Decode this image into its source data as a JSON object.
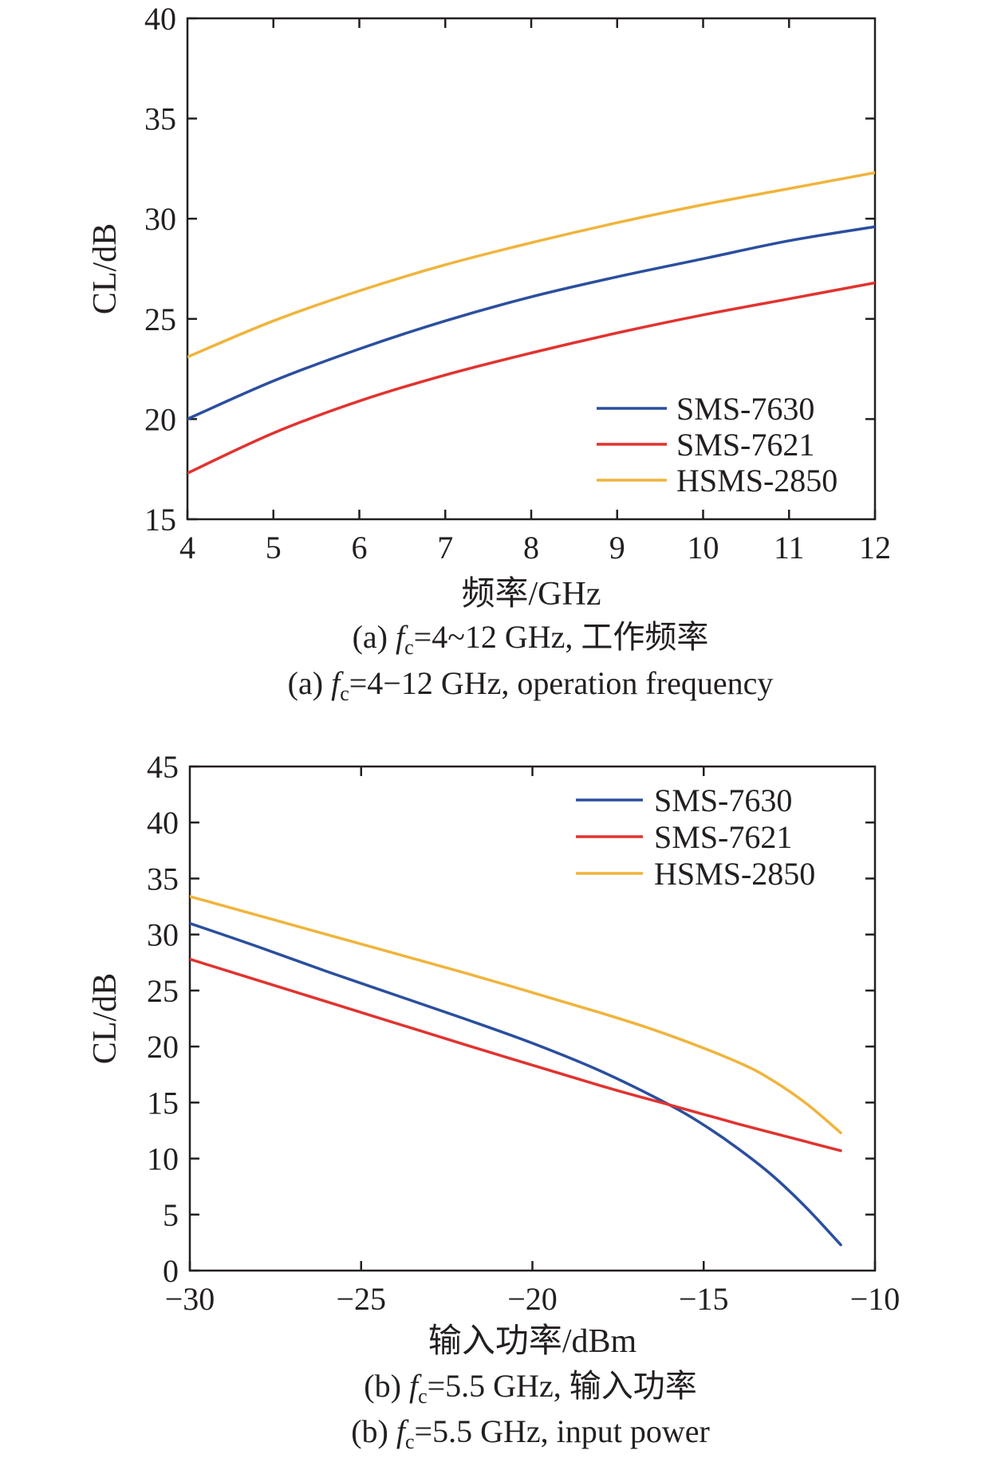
{
  "colors": {
    "blue": "#2b4f9e",
    "red": "#e1332f",
    "yellow": "#f0b43c",
    "axis": "#231f20"
  },
  "chart_data": [
    {
      "type": "line",
      "xlabel": "频率/GHz",
      "ylabel": "CL/dB",
      "xlim": [
        4,
        12
      ],
      "ylim": [
        15,
        40
      ],
      "xticks": [
        4,
        5,
        6,
        7,
        8,
        9,
        10,
        11,
        12
      ],
      "yticks": [
        15,
        20,
        25,
        30,
        35,
        40
      ],
      "legend": "bottom-right",
      "grid": false,
      "series": [
        {
          "name": "SMS-7630",
          "color": "#2b4f9e",
          "x": [
            4,
            5,
            6,
            7,
            8,
            9,
            10,
            11,
            12
          ],
          "y": [
            20.0,
            21.9,
            23.5,
            24.9,
            26.1,
            27.1,
            28.0,
            28.9,
            29.6
          ]
        },
        {
          "name": "SMS-7621",
          "color": "#e1332f",
          "x": [
            4,
            5,
            6,
            7,
            8,
            9,
            10,
            11,
            12
          ],
          "y": [
            17.3,
            19.3,
            20.9,
            22.2,
            23.3,
            24.3,
            25.2,
            26.0,
            26.8
          ]
        },
        {
          "name": "HSMS-2850",
          "color": "#f0b43c",
          "x": [
            4,
            5,
            6,
            7,
            8,
            9,
            10,
            11,
            12
          ],
          "y": [
            23.1,
            24.9,
            26.4,
            27.7,
            28.8,
            29.8,
            30.7,
            31.5,
            32.3
          ]
        }
      ],
      "caption_cn": {
        "prefix": "(a) ",
        "f": "f",
        "sub": "c",
        "rest": "=4~12 GHz, 工作频率"
      },
      "caption_en": {
        "prefix": "(a) ",
        "f": "f",
        "sub": "c",
        "rest": "=4−12 GHz, operation frequency"
      }
    },
    {
      "type": "line",
      "xlabel": "输入功率/dBm",
      "ylabel": "CL/dB",
      "xlim": [
        -30,
        -10
      ],
      "ylim": [
        0,
        45
      ],
      "xticks": [
        -30,
        -25,
        -20,
        -15,
        -10
      ],
      "xticklabels": [
        "−30",
        "−25",
        "−20",
        "−15",
        "−10"
      ],
      "yticks": [
        0,
        5,
        10,
        15,
        20,
        25,
        30,
        35,
        40,
        45
      ],
      "legend": "top-right",
      "grid": false,
      "series": [
        {
          "name": "SMS-7630",
          "color": "#2b4f9e",
          "x": [
            -30,
            -28,
            -26,
            -24,
            -22,
            -20,
            -18,
            -16,
            -15,
            -14,
            -13,
            -12,
            -11
          ],
          "y": [
            31.0,
            28.9,
            26.7,
            24.6,
            22.5,
            20.3,
            17.8,
            14.8,
            13.0,
            10.9,
            8.5,
            5.6,
            2.3
          ]
        },
        {
          "name": "SMS-7621",
          "color": "#e1332f",
          "x": [
            -30,
            -26,
            -22,
            -18,
            -16,
            -14,
            -12,
            -11
          ],
          "y": [
            27.8,
            24.0,
            20.2,
            16.5,
            14.8,
            13.1,
            11.5,
            10.7
          ]
        },
        {
          "name": "HSMS-2850",
          "color": "#f0b43c",
          "x": [
            -30,
            -26,
            -22,
            -18,
            -16,
            -14,
            -13,
            -12,
            -11
          ],
          "y": [
            33.4,
            30.0,
            26.6,
            23.0,
            21.0,
            18.6,
            17.0,
            14.9,
            12.3
          ]
        }
      ],
      "caption_cn": {
        "prefix": "(b) ",
        "f": "f",
        "sub": "c",
        "rest": "=5.5 GHz, 输入功率"
      },
      "caption_en": {
        "prefix": "(b) ",
        "f": "f",
        "sub": "c",
        "rest": "=5.5 GHz, input power"
      }
    }
  ]
}
